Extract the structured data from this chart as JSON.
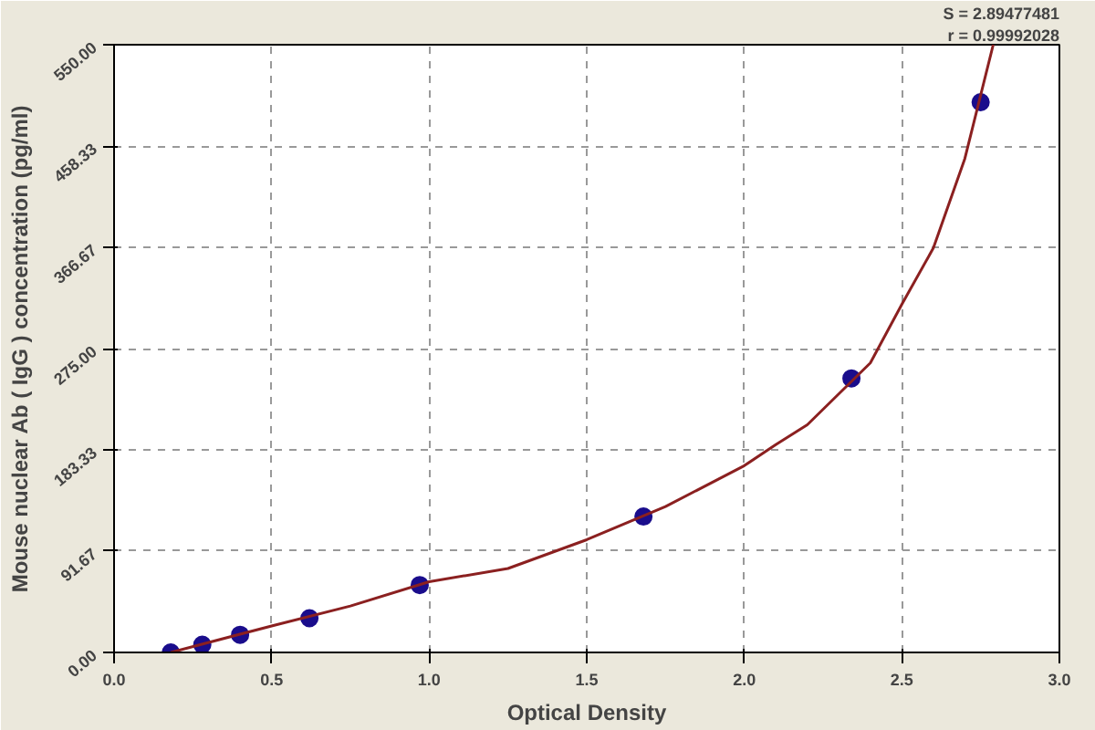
{
  "chart_data": {
    "type": "scatter",
    "xlabel": "Optical Density",
    "ylabel": "Mouse nuclear Ab ( IgG ) concentration (pg/ml)",
    "annotations": [
      "S = 2.89477481",
      "r = 0.99992028"
    ],
    "xlim": [
      0,
      3
    ],
    "xticks": [
      {
        "value": 0,
        "label": "0.0"
      },
      0.5,
      {
        "value": 1,
        "label": "1.0"
      },
      1.5,
      {
        "value": 2,
        "label": "2.0"
      },
      2.5,
      {
        "value": 3,
        "label": "3.0"
      }
    ],
    "ylim": [
      0,
      550
    ],
    "yticks": [
      {
        "value": 0,
        "label": "0.00"
      },
      91.67,
      183.33,
      {
        "value": 275,
        "label": "275.00"
      },
      366.67,
      458.33,
      {
        "value": 550,
        "label": "550.00"
      }
    ],
    "grid": true,
    "marker": "circle",
    "series": [
      {
        "color": "#1a0d8c",
        "x": [
          0.18,
          0.28,
          0.4,
          0.62,
          0.97,
          1.68,
          2.34,
          2.75
        ],
        "values": [
          0,
          7,
          16,
          31,
          61,
          123,
          248,
          498
        ]
      },
      {
        "type": "line",
        "color": "#8b2020",
        "line_style": "solid",
        "marker": "none",
        "x": [
          0.18,
          0.5,
          0.75,
          1.0,
          1.25,
          1.5,
          1.75,
          2.0,
          2.1,
          2.2,
          2.4,
          2.5,
          2.6,
          2.7,
          2.79
        ],
        "values": [
          0,
          24,
          42,
          64,
          76,
          102,
          132,
          169,
          188,
          206,
          262,
          315,
          366,
          447,
          550
        ]
      }
    ]
  }
}
